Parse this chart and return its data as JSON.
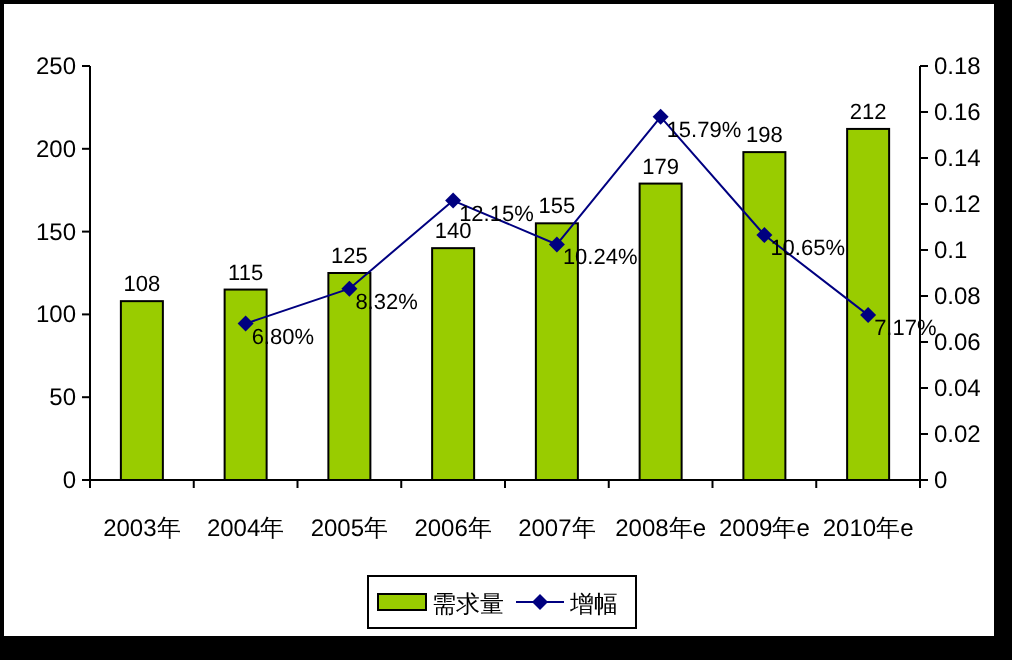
{
  "chart_data": {
    "type": "bar",
    "categories": [
      "2003年",
      "2004年",
      "2005年",
      "2006年",
      "2007年",
      "2008年e",
      "2009年e",
      "2010年e"
    ],
    "series": [
      {
        "name": "需求量",
        "color": "#99cc00",
        "values": [
          108,
          115,
          125,
          140,
          155,
          179,
          198,
          212
        ],
        "value_labels": [
          "108",
          "115",
          "125",
          "140",
          "155",
          "179",
          "198",
          "212"
        ]
      },
      {
        "name": "增幅",
        "type": "line",
        "axis": "y2",
        "color": "#000080",
        "marker": "diamond",
        "values": [
          null,
          0.068,
          0.0832,
          0.1215,
          0.1024,
          0.1579,
          0.1065,
          0.0717
        ],
        "value_labels": [
          null,
          "6.80%",
          "8.32%",
          "12.15%",
          "10.24%",
          "15.79%",
          "10.65%",
          "7.17%"
        ]
      }
    ],
    "ylim": [
      0,
      250
    ],
    "yticks": [
      0,
      50,
      100,
      150,
      200,
      250
    ],
    "y2lim": [
      0,
      0.18
    ],
    "y2ticks": [
      0,
      0.02,
      0.04,
      0.06,
      0.08,
      0.1,
      0.12,
      0.14,
      0.16,
      0.18
    ],
    "grid": false,
    "legend": "bottom"
  }
}
